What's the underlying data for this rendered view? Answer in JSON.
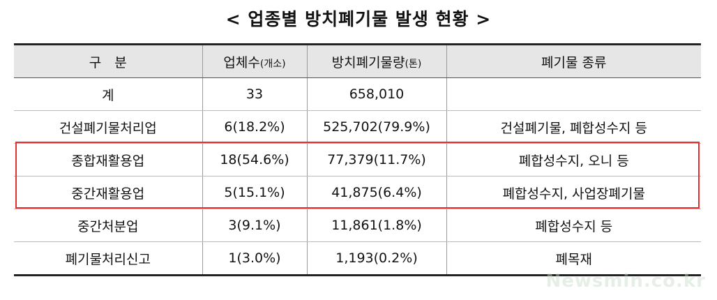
{
  "header": {
    "title": "< 업종별 방치폐기물 발생 현황 >"
  },
  "table": {
    "columns": [
      {
        "text": "구　분"
      },
      {
        "text": "업체수",
        "unit": "(개소)"
      },
      {
        "text": "방치폐기물량",
        "unit": "(톤)"
      },
      {
        "text": "폐기물 종류"
      }
    ],
    "rows": [
      [
        "계",
        "33",
        "658,010",
        ""
      ],
      [
        "건설폐기물처리업",
        "6(18.2%)",
        "525,702(79.9%)",
        "건설폐기물, 폐합성수지 등"
      ],
      [
        "종합재활용업",
        "18(54.6%)",
        "77,379(11.7%)",
        "폐합성수지, 오니 등"
      ],
      [
        "중간재활용업",
        "5(15.1%)",
        "41,875(6.4%)",
        "폐합성수지, 사업장폐기물"
      ],
      [
        "중간처분업",
        "3(9.1%)",
        "11,861(1.8%)",
        "폐합성수지 등"
      ],
      [
        "폐기물처리신고",
        "1(3.0%)",
        "1,193(0.2%)",
        "폐목재"
      ]
    ],
    "highlighted_rows": [
      2,
      3
    ]
  },
  "watermark": "Newsmin.co.kr"
}
